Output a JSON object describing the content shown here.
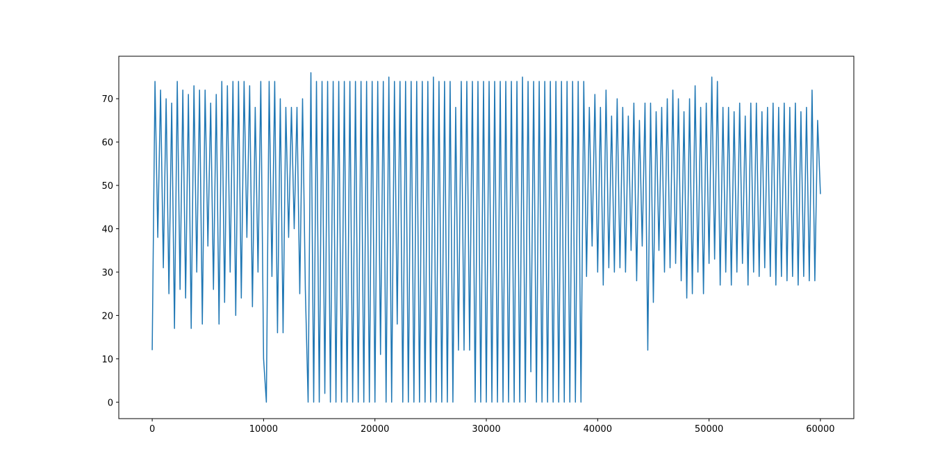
{
  "chart_data": {
    "type": "line",
    "x": [
      0,
      250,
      500,
      750,
      1000,
      1250,
      1500,
      1750,
      2000,
      2250,
      2500,
      2750,
      3000,
      3250,
      3500,
      3750,
      4000,
      4250,
      4500,
      4750,
      5000,
      5250,
      5500,
      5750,
      6000,
      6250,
      6500,
      6750,
      7000,
      7250,
      7500,
      7750,
      8000,
      8250,
      8500,
      8750,
      9000,
      9250,
      9500,
      9750,
      10000,
      10250,
      10500,
      10750,
      11000,
      11250,
      11500,
      11750,
      12000,
      12250,
      12500,
      12750,
      13000,
      13250,
      13500,
      13750,
      14000,
      14250,
      14500,
      14750,
      15000,
      15250,
      15500,
      15750,
      16000,
      16250,
      16500,
      16750,
      17000,
      17250,
      17500,
      17750,
      18000,
      18250,
      18500,
      18750,
      19000,
      19250,
      19500,
      19750,
      20000,
      20250,
      20500,
      20750,
      21000,
      21250,
      21500,
      21750,
      22000,
      22250,
      22500,
      22750,
      23000,
      23250,
      23500,
      23750,
      24000,
      24250,
      24500,
      24750,
      25000,
      25250,
      25500,
      25750,
      26000,
      26250,
      26500,
      26750,
      27000,
      27250,
      27500,
      27750,
      28000,
      28250,
      28500,
      28750,
      29000,
      29250,
      29500,
      29750,
      30000,
      30250,
      30500,
      30750,
      31000,
      31250,
      31500,
      31750,
      32000,
      32250,
      32500,
      32750,
      33000,
      33250,
      33500,
      33750,
      34000,
      34250,
      34500,
      34750,
      35000,
      35250,
      35500,
      35750,
      36000,
      36250,
      36500,
      36750,
      37000,
      37250,
      37500,
      37750,
      38000,
      38250,
      38500,
      38750,
      39000,
      39250,
      39500,
      39750,
      40000,
      40250,
      40500,
      40750,
      41000,
      41250,
      41500,
      41750,
      42000,
      42250,
      42500,
      42750,
      43000,
      43250,
      43500,
      43750,
      44000,
      44250,
      44500,
      44750,
      45000,
      45250,
      45500,
      45750,
      46000,
      46250,
      46500,
      46750,
      47000,
      47250,
      47500,
      47750,
      48000,
      48250,
      48500,
      48750,
      49000,
      49250,
      49500,
      49750,
      50000,
      50250,
      50500,
      50750,
      51000,
      51250,
      51500,
      51750,
      52000,
      52250,
      52500,
      52750,
      53000,
      53250,
      53500,
      53750,
      54000,
      54250,
      54500,
      54750,
      55000,
      55250,
      55500,
      55750,
      56000,
      56250,
      56500,
      56750,
      57000,
      57250,
      57500,
      57750,
      58000,
      58250,
      58500,
      58750,
      59000,
      59250,
      59500,
      59750,
      60000
    ],
    "series": [
      {
        "color": "#1f77b4",
        "values": [
          12,
          74,
          38,
          72,
          31,
          70,
          25,
          69,
          17,
          74,
          26,
          72,
          24,
          71,
          17,
          73,
          30,
          72,
          18,
          72,
          36,
          69,
          26,
          71,
          18,
          74,
          23,
          73,
          30,
          74,
          20,
          74,
          24,
          74,
          38,
          73,
          22,
          68,
          30,
          74,
          10,
          0,
          74,
          29,
          74,
          16,
          70,
          16,
          68,
          38,
          68,
          40,
          68,
          25,
          70,
          26,
          0,
          76,
          0,
          74,
          0,
          74,
          2,
          74,
          0,
          74,
          0,
          74,
          0,
          74,
          0,
          74,
          0,
          74,
          0,
          74,
          0,
          74,
          0,
          74,
          0,
          74,
          11,
          74,
          0,
          75,
          0,
          74,
          18,
          74,
          0,
          74,
          0,
          74,
          0,
          74,
          0,
          74,
          0,
          74,
          0,
          75,
          0,
          74,
          0,
          74,
          0,
          74,
          0,
          68,
          12,
          74,
          12,
          74,
          12,
          74,
          0,
          74,
          0,
          74,
          0,
          74,
          0,
          74,
          0,
          74,
          0,
          74,
          0,
          74,
          0,
          74,
          0,
          75,
          0,
          74,
          7,
          74,
          0,
          74,
          0,
          74,
          0,
          74,
          0,
          74,
          0,
          74,
          0,
          74,
          0,
          74,
          0,
          74,
          0,
          74,
          29,
          68,
          36,
          71,
          30,
          68,
          27,
          72,
          31,
          66,
          30,
          70,
          31,
          68,
          30,
          66,
          35,
          69,
          28,
          65,
          36,
          69,
          12,
          69,
          23,
          67,
          35,
          68,
          30,
          70,
          31,
          72,
          32,
          70,
          28,
          67,
          24,
          70,
          25,
          73,
          30,
          68,
          25,
          69,
          32,
          75,
          33,
          74,
          27,
          68,
          30,
          68,
          27,
          67,
          30,
          69,
          32,
          66,
          27,
          69,
          30,
          69,
          29,
          67,
          31,
          68,
          29,
          69,
          27,
          68,
          29,
          69,
          28,
          68,
          29,
          69,
          27,
          67,
          29,
          68,
          28,
          72,
          28,
          65,
          48
        ]
      }
    ],
    "xlim": [
      -3000,
      63000
    ],
    "ylim": [
      -3.8,
      79.8
    ],
    "xticks": [
      0,
      10000,
      20000,
      30000,
      40000,
      50000,
      60000
    ],
    "yticks": [
      0,
      10,
      20,
      30,
      40,
      50,
      60,
      70
    ]
  }
}
